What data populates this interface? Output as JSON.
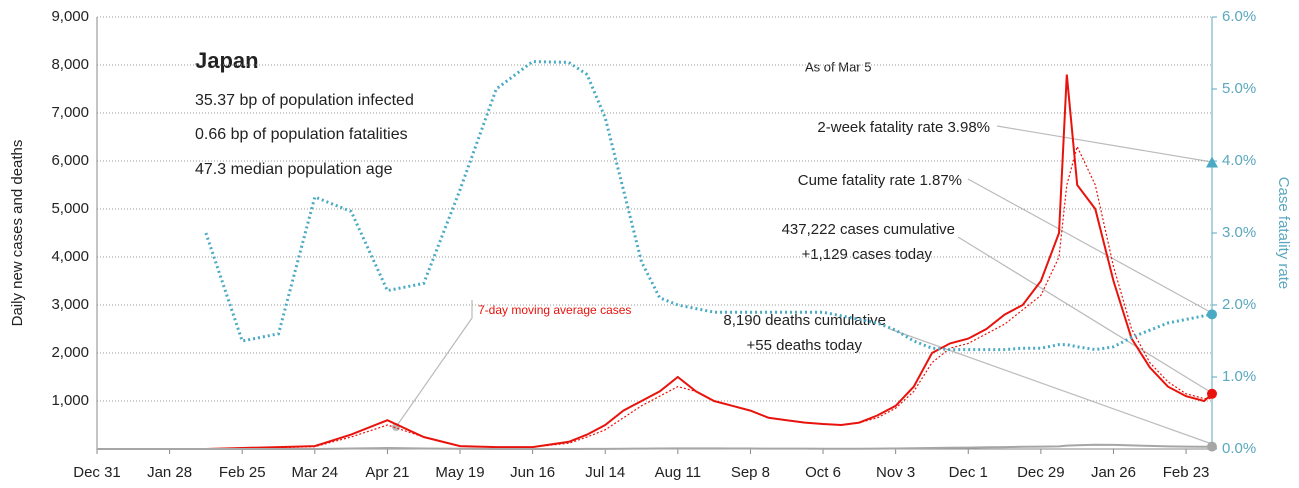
{
  "chart_data": {
    "type": "line",
    "ylabel": "Daily new cases and deaths",
    "y2label": "Case fatality rate",
    "xlim": [
      0,
      430
    ],
    "xticks": [
      {
        "value": 0,
        "label": "Dec 31"
      },
      {
        "value": 28,
        "label": "Jan 28"
      },
      {
        "value": 56,
        "label": "Feb 25"
      },
      {
        "value": 84,
        "label": "Mar 24"
      },
      {
        "value": 112,
        "label": "Apr 21"
      },
      {
        "value": 140,
        "label": "May 19"
      },
      {
        "value": 168,
        "label": "Jun 16"
      },
      {
        "value": 196,
        "label": "Jul 14"
      },
      {
        "value": 224,
        "label": "Aug 11"
      },
      {
        "value": 252,
        "label": "Sep 8"
      },
      {
        "value": 280,
        "label": "Oct 6"
      },
      {
        "value": 308,
        "label": "Nov 3"
      },
      {
        "value": 336,
        "label": "Dec 1"
      },
      {
        "value": 364,
        "label": "Dec 29"
      },
      {
        "value": 392,
        "label": "Jan 26"
      },
      {
        "value": 420,
        "label": "Feb 23"
      }
    ],
    "ylim": [
      0,
      9000
    ],
    "yticks": [
      {
        "value": 1000,
        "label": "1,000"
      },
      {
        "value": 2000,
        "label": "2,000"
      },
      {
        "value": 3000,
        "label": "3,000"
      },
      {
        "value": 4000,
        "label": "4,000"
      },
      {
        "value": 5000,
        "label": "5,000"
      },
      {
        "value": 6000,
        "label": "6,000"
      },
      {
        "value": 7000,
        "label": "7,000"
      },
      {
        "value": 8000,
        "label": "8,000"
      },
      {
        "value": 9000,
        "label": "9,000"
      }
    ],
    "y2lim": [
      0,
      6
    ],
    "y2ticks": [
      {
        "value": 0,
        "label": "0.0%"
      },
      {
        "value": 1,
        "label": "1.0%"
      },
      {
        "value": 2,
        "label": "2.0%"
      },
      {
        "value": 3,
        "label": "3.0%"
      },
      {
        "value": 4,
        "label": "4.0%"
      },
      {
        "value": 5,
        "label": "5.0%"
      },
      {
        "value": 6,
        "label": "6.0%"
      }
    ],
    "grid": true,
    "x": [
      0,
      14,
      28,
      42,
      56,
      70,
      84,
      98,
      112,
      126,
      140,
      154,
      168,
      182,
      189,
      196,
      203,
      210,
      217,
      224,
      231,
      238,
      245,
      252,
      259,
      266,
      273,
      280,
      287,
      294,
      301,
      308,
      315,
      322,
      329,
      336,
      343,
      350,
      357,
      364,
      371,
      374,
      378,
      385,
      392,
      399,
      406,
      413,
      420,
      427,
      430
    ],
    "series": [
      {
        "color": "#e8130c",
        "style": "solid",
        "values": [
          0,
          0,
          0,
          0,
          20,
          40,
          60,
          300,
          600,
          250,
          60,
          40,
          40,
          150,
          300,
          500,
          800,
          1000,
          1200,
          1500,
          1200,
          1000,
          900,
          800,
          650,
          600,
          550,
          520,
          500,
          550,
          700,
          900,
          1300,
          2000,
          2200,
          2300,
          2500,
          2800,
          3000,
          3500,
          4500,
          7800,
          5500,
          5000,
          3500,
          2300,
          1700,
          1300,
          1100,
          1000,
          1150
        ]
      },
      {
        "name": "7-day moving average cases",
        "color": "#e8130c",
        "style": "dotted",
        "values": [
          0,
          0,
          0,
          0,
          15,
          30,
          50,
          250,
          500,
          250,
          60,
          40,
          40,
          120,
          250,
          400,
          650,
          900,
          1100,
          1300,
          1200,
          1000,
          900,
          800,
          650,
          600,
          550,
          520,
          500,
          550,
          650,
          850,
          1200,
          1800,
          2100,
          2200,
          2400,
          2600,
          2900,
          3200,
          4000,
          5500,
          6300,
          5500,
          3800,
          2500,
          1800,
          1400,
          1150,
          1050,
          1050
        ]
      },
      {
        "color": "#a6a6a6",
        "style": "solid",
        "values": [
          0,
          0,
          0,
          0,
          0,
          0,
          0,
          10,
          20,
          10,
          5,
          1,
          1,
          1,
          2,
          3,
          5,
          8,
          10,
          12,
          12,
          12,
          10,
          10,
          8,
          8,
          8,
          7,
          7,
          7,
          8,
          10,
          15,
          20,
          25,
          30,
          35,
          40,
          45,
          50,
          55,
          70,
          80,
          90,
          85,
          75,
          65,
          55,
          50,
          45,
          50
        ]
      },
      {
        "color": "#4aaac4",
        "style": "dotted",
        "axis": "y2",
        "values": [
          null,
          null,
          null,
          3.0,
          1.5,
          1.6,
          3.5,
          3.3,
          2.2,
          2.3,
          3.6,
          5.0,
          5.38,
          5.37,
          5.2,
          4.6,
          3.6,
          2.6,
          2.1,
          2.0,
          1.95,
          1.9,
          1.9,
          1.9,
          1.9,
          1.9,
          1.9,
          1.9,
          1.85,
          1.8,
          1.75,
          1.65,
          1.5,
          1.4,
          1.38,
          1.38,
          1.38,
          1.38,
          1.4,
          1.4,
          1.45,
          1.45,
          1.42,
          1.38,
          1.42,
          1.55,
          1.65,
          1.75,
          1.8,
          1.85,
          1.87
        ]
      }
    ],
    "fatality_2wk": 3.98,
    "fatality_2wk_color": "#4aaac4",
    "country": "Japan",
    "facts": [
      "35.37 bp of population infected",
      "0.66 bp of population fatalities",
      "47.3 median population age"
    ],
    "as_of": "As of Mar 5",
    "annotations": [
      "2-week fatality rate 3.98%",
      "Cume fatality rate 1.87%",
      "437,222 cases cumulative",
      "+1,129 cases today",
      "8,190 deaths cumulative",
      "+55 deaths today"
    ]
  }
}
